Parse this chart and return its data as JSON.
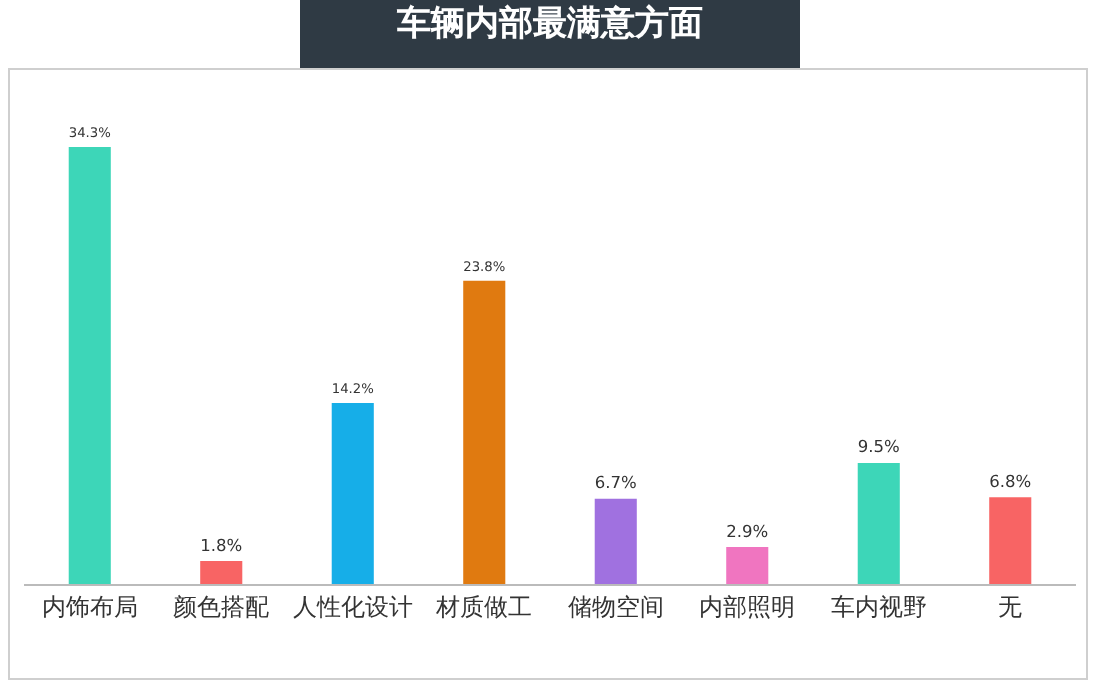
{
  "chart_data": {
    "type": "bar",
    "title": "车辆内部最满意方面",
    "categories": [
      "内饰布局",
      "颜色搭配",
      "人性化设计",
      "材质做工",
      "储物空间",
      "内部照明",
      "车内视野",
      "无"
    ],
    "values": [
      34.3,
      1.8,
      14.2,
      23.8,
      6.7,
      2.9,
      9.5,
      6.8
    ],
    "colors": [
      "#3dd6b8",
      "#f86464",
      "#16aee8",
      "#e07a10",
      "#a071e0",
      "#f075c0",
      "#3dd6b8",
      "#f86464"
    ],
    "value_labels": [
      "34.3%",
      "1.8%",
      "14.2%",
      "23.8%",
      "6.7%",
      "2.9%",
      "9.5%",
      "6.8%"
    ]
  }
}
